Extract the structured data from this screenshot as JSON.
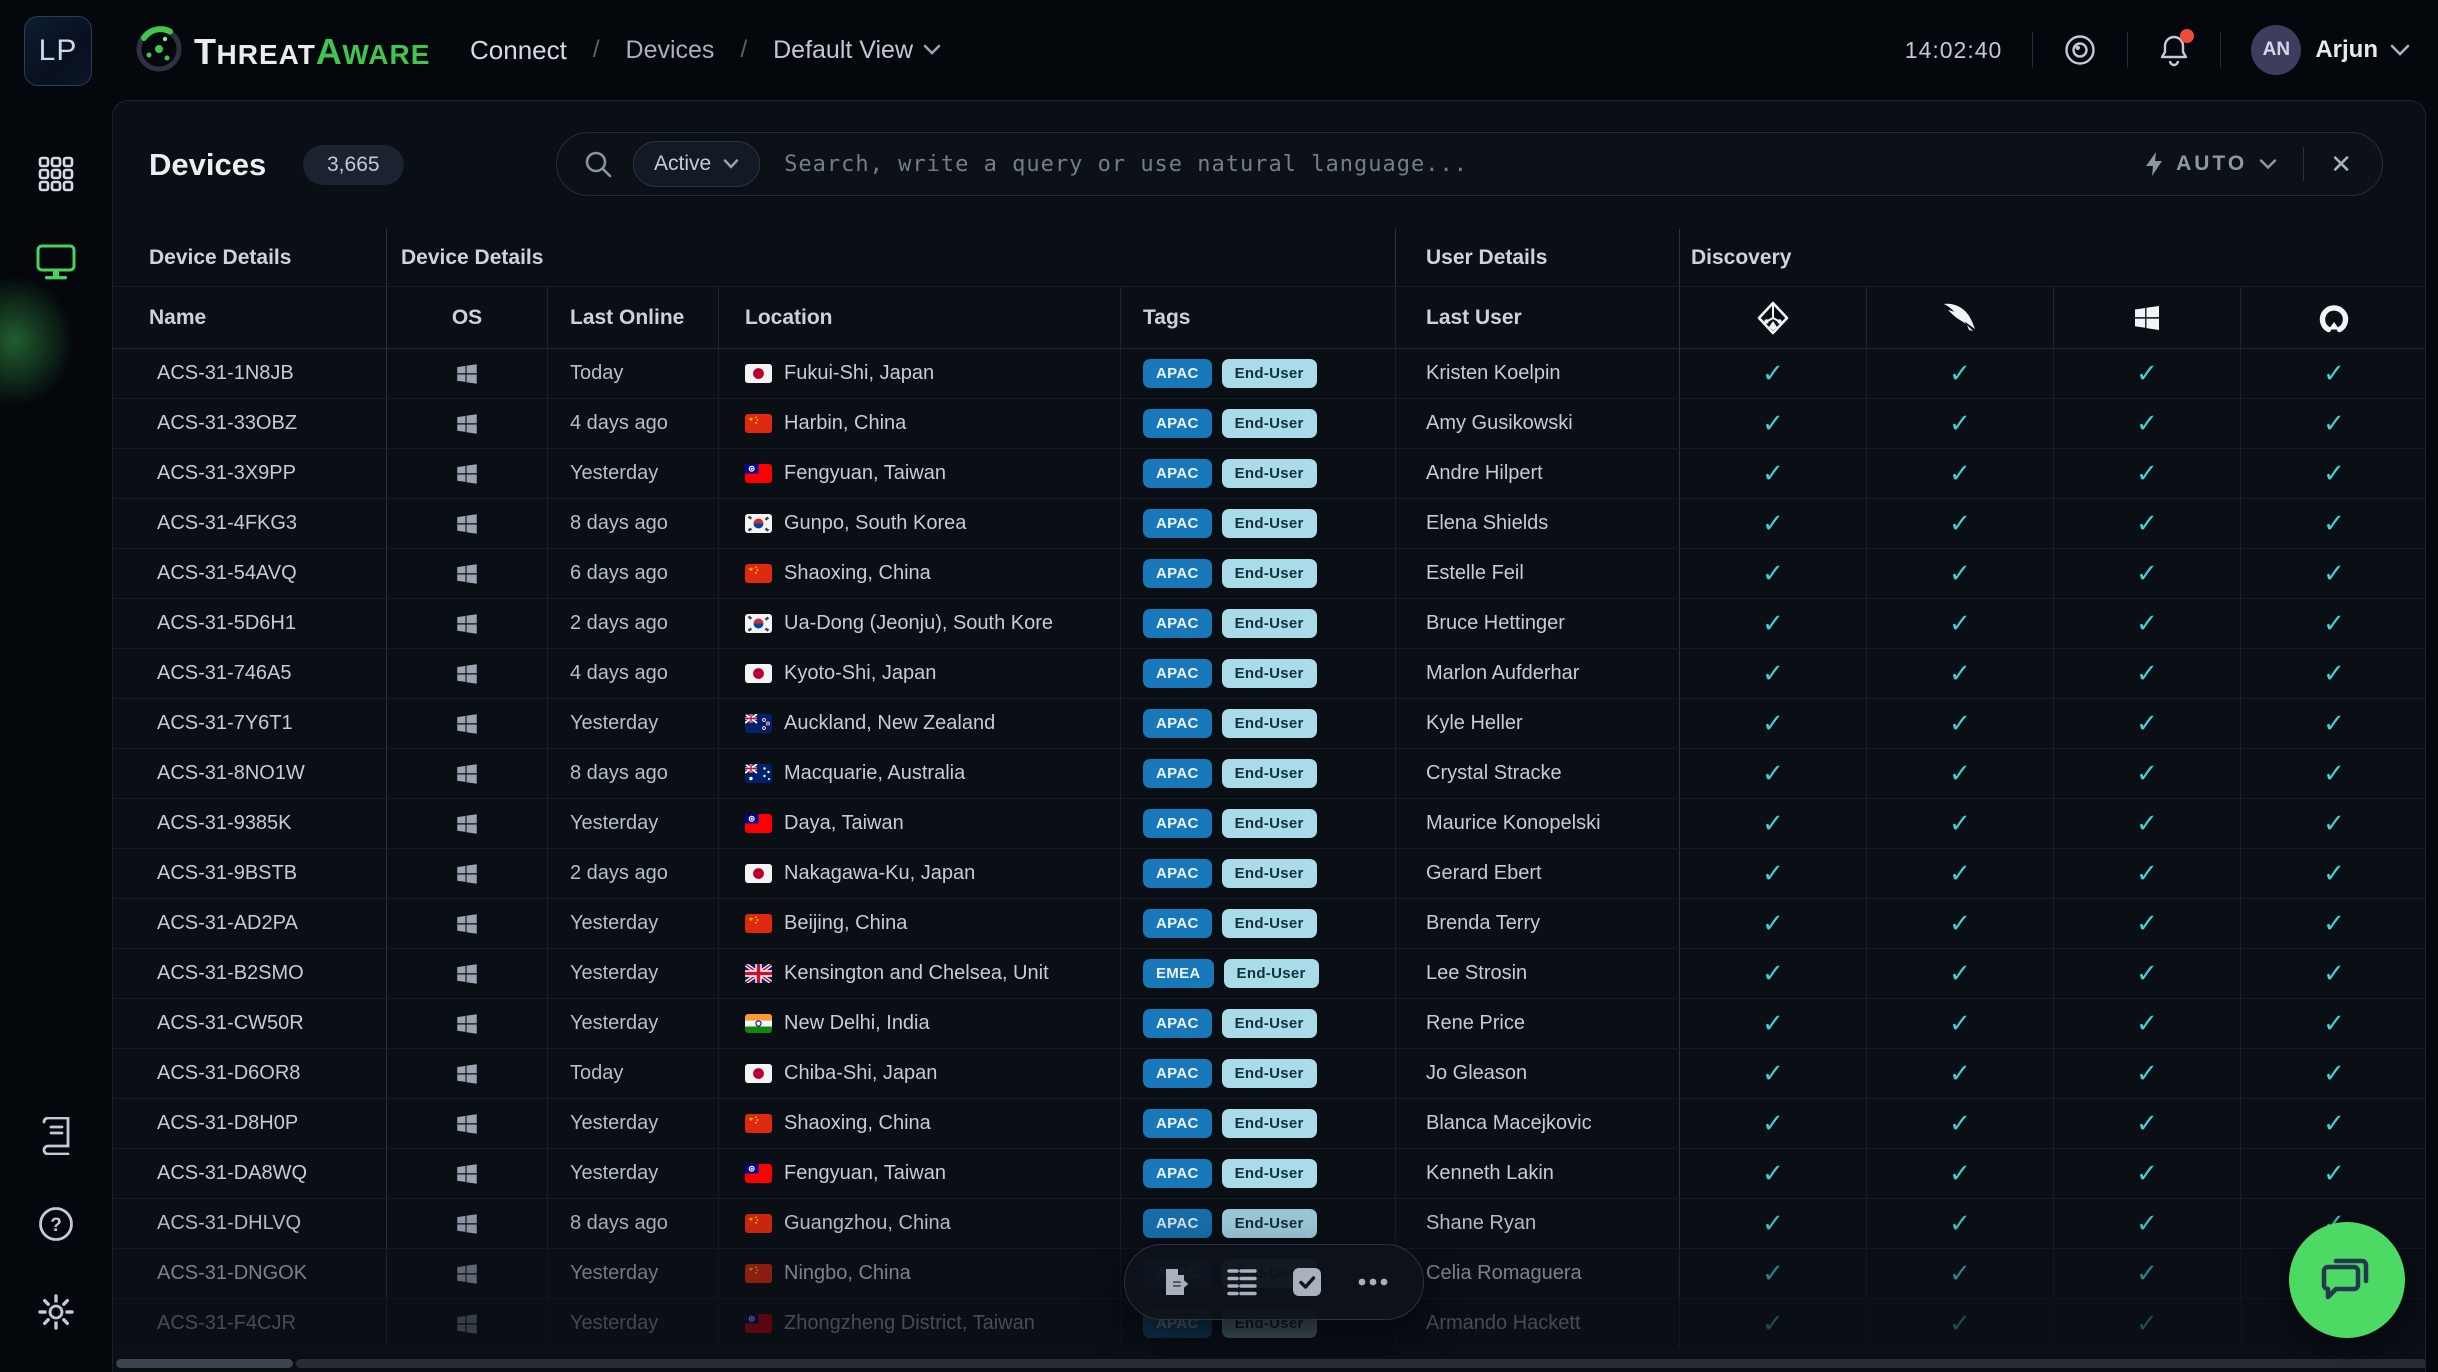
{
  "colors": {
    "accent_green": "#41c54e",
    "check_teal": "#43ced2",
    "tag_blue": "#1878ba",
    "tag_light": "#a9dbe9",
    "chat_green": "#4cd964"
  },
  "header": {
    "workspace_initials": "LP",
    "logo_threat": "Threat",
    "logo_aware": "Aware",
    "breadcrumb": {
      "app": "Connect",
      "section": "Devices",
      "view": "Default View",
      "separator": "/"
    },
    "time": "14:02:40",
    "user": {
      "initials": "AN",
      "name": "Arjun"
    }
  },
  "sidebar": {
    "items": [
      "apps",
      "devices"
    ],
    "bottom_items": [
      "docs",
      "help",
      "settings"
    ]
  },
  "page": {
    "title": "Devices",
    "count": "3,665"
  },
  "search": {
    "filter_value": "Active",
    "placeholder": "Search, write a query or use natural language...",
    "auto_label": "AUTO",
    "close_label": "✕"
  },
  "table": {
    "groups": [
      "Device Details",
      "Device Details",
      "User Details",
      "Discovery"
    ],
    "columns": [
      "Name",
      "OS",
      "Last Online",
      "Location",
      "Tags",
      "Last User"
    ],
    "discovery_columns": [
      "entra-id",
      "crowdstrike",
      "microsoft",
      "automox"
    ],
    "check_glyph": "✓",
    "rows": [
      {
        "name": "ACS-31-1N8JB",
        "os": "windows",
        "last_online": "Today",
        "country": "jp",
        "location": "Fukui-Shi, Japan",
        "tags": [
          "APAC",
          "End-User"
        ],
        "last_user": "Kristen Koelpin",
        "discovery": [
          true,
          true,
          true,
          true
        ],
        "fade": 1
      },
      {
        "name": "ACS-31-33OBZ",
        "os": "windows",
        "last_online": "4 days ago",
        "country": "cn",
        "location": "Harbin, China",
        "tags": [
          "APAC",
          "End-User"
        ],
        "last_user": "Amy Gusikowski",
        "discovery": [
          true,
          true,
          true,
          true
        ],
        "fade": 1
      },
      {
        "name": "ACS-31-3X9PP",
        "os": "windows",
        "last_online": "Yesterday",
        "country": "tw",
        "location": "Fengyuan, Taiwan",
        "tags": [
          "APAC",
          "End-User"
        ],
        "last_user": "Andre Hilpert",
        "discovery": [
          true,
          true,
          true,
          true
        ],
        "fade": 1
      },
      {
        "name": "ACS-31-4FKG3",
        "os": "windows",
        "last_online": "8 days ago",
        "country": "kr",
        "location": "Gunpo, South Korea",
        "tags": [
          "APAC",
          "End-User"
        ],
        "last_user": "Elena Shields",
        "discovery": [
          true,
          true,
          true,
          true
        ],
        "fade": 1
      },
      {
        "name": "ACS-31-54AVQ",
        "os": "windows",
        "last_online": "6 days ago",
        "country": "cn",
        "location": "Shaoxing, China",
        "tags": [
          "APAC",
          "End-User"
        ],
        "last_user": "Estelle Feil",
        "discovery": [
          true,
          true,
          true,
          true
        ],
        "fade": 1
      },
      {
        "name": "ACS-31-5D6H1",
        "os": "windows",
        "last_online": "2 days ago",
        "country": "kr",
        "location": "Ua-Dong (Jeonju), South Kore",
        "tags": [
          "APAC",
          "End-User"
        ],
        "last_user": "Bruce Hettinger",
        "discovery": [
          true,
          true,
          true,
          true
        ],
        "fade": 1
      },
      {
        "name": "ACS-31-746A5",
        "os": "windows",
        "last_online": "4 days ago",
        "country": "jp",
        "location": "Kyoto-Shi, Japan",
        "tags": [
          "APAC",
          "End-User"
        ],
        "last_user": "Marlon Aufderhar",
        "discovery": [
          true,
          true,
          true,
          true
        ],
        "fade": 1
      },
      {
        "name": "ACS-31-7Y6T1",
        "os": "windows",
        "last_online": "Yesterday",
        "country": "nz",
        "location": "Auckland, New Zealand",
        "tags": [
          "APAC",
          "End-User"
        ],
        "last_user": "Kyle Heller",
        "discovery": [
          true,
          true,
          true,
          true
        ],
        "fade": 1
      },
      {
        "name": "ACS-31-8NO1W",
        "os": "windows",
        "last_online": "8 days ago",
        "country": "au",
        "location": "Macquarie, Australia",
        "tags": [
          "APAC",
          "End-User"
        ],
        "last_user": "Crystal Stracke",
        "discovery": [
          true,
          true,
          true,
          true
        ],
        "fade": 1
      },
      {
        "name": "ACS-31-9385K",
        "os": "windows",
        "last_online": "Yesterday",
        "country": "tw",
        "location": "Daya, Taiwan",
        "tags": [
          "APAC",
          "End-User"
        ],
        "last_user": "Maurice Konopelski",
        "discovery": [
          true,
          true,
          true,
          true
        ],
        "fade": 1
      },
      {
        "name": "ACS-31-9BSTB",
        "os": "windows",
        "last_online": "2 days ago",
        "country": "jp",
        "location": "Nakagawa-Ku, Japan",
        "tags": [
          "APAC",
          "End-User"
        ],
        "last_user": "Gerard Ebert",
        "discovery": [
          true,
          true,
          true,
          true
        ],
        "fade": 1
      },
      {
        "name": "ACS-31-AD2PA",
        "os": "windows",
        "last_online": "Yesterday",
        "country": "cn",
        "location": "Beijing, China",
        "tags": [
          "APAC",
          "End-User"
        ],
        "last_user": "Brenda Terry",
        "discovery": [
          true,
          true,
          true,
          true
        ],
        "fade": 1
      },
      {
        "name": "ACS-31-B2SMO",
        "os": "windows",
        "last_online": "Yesterday",
        "country": "gb",
        "location": "Kensington and Chelsea, Unit",
        "tags": [
          "EMEA",
          "End-User"
        ],
        "last_user": "Lee Strosin",
        "discovery": [
          true,
          true,
          true,
          true
        ],
        "fade": 1
      },
      {
        "name": "ACS-31-CW50R",
        "os": "windows",
        "last_online": "Yesterday",
        "country": "in",
        "location": "New Delhi, India",
        "tags": [
          "APAC",
          "End-User"
        ],
        "last_user": "Rene Price",
        "discovery": [
          true,
          true,
          true,
          true
        ],
        "fade": 1
      },
      {
        "name": "ACS-31-D6OR8",
        "os": "windows",
        "last_online": "Today",
        "country": "jp",
        "location": "Chiba-Shi, Japan",
        "tags": [
          "APAC",
          "End-User"
        ],
        "last_user": "Jo Gleason",
        "discovery": [
          true,
          true,
          true,
          true
        ],
        "fade": 1
      },
      {
        "name": "ACS-31-D8H0P",
        "os": "windows",
        "last_online": "Yesterday",
        "country": "cn",
        "location": "Shaoxing, China",
        "tags": [
          "APAC",
          "End-User"
        ],
        "last_user": "Blanca Macejkovic",
        "discovery": [
          true,
          true,
          true,
          true
        ],
        "fade": 1
      },
      {
        "name": "ACS-31-DA8WQ",
        "os": "windows",
        "last_online": "Yesterday",
        "country": "tw",
        "location": "Fengyuan, Taiwan",
        "tags": [
          "APAC",
          "End-User"
        ],
        "last_user": "Kenneth Lakin",
        "discovery": [
          true,
          true,
          true,
          true
        ],
        "fade": 1
      },
      {
        "name": "ACS-31-DHLVQ",
        "os": "windows",
        "last_online": "8 days ago",
        "country": "cn",
        "location": "Guangzhou, China",
        "tags": [
          "APAC",
          "End-User"
        ],
        "last_user": "Shane Ryan",
        "discovery": [
          true,
          true,
          true,
          true
        ],
        "fade": 0.9
      },
      {
        "name": "ACS-31-DNGOK",
        "os": "windows",
        "last_online": "Yesterday",
        "country": "cn",
        "location": "Ningbo, China",
        "tags": [
          "APAC",
          "End-User"
        ],
        "last_user": "Celia Romaguera",
        "discovery": [
          true,
          true,
          true,
          true
        ],
        "fade": 0.6
      },
      {
        "name": "ACS-31-F4CJR",
        "os": "windows",
        "last_online": "Yesterday",
        "country": "tw",
        "location": "Zhongzheng District, Taiwan",
        "tags": [
          "APAC",
          "End-User"
        ],
        "last_user": "Armando Hackett",
        "discovery": [
          true,
          true,
          true,
          true
        ],
        "fade": 0.32
      }
    ]
  },
  "toolbar": {
    "items": [
      "export",
      "list-view",
      "select",
      "more"
    ]
  }
}
